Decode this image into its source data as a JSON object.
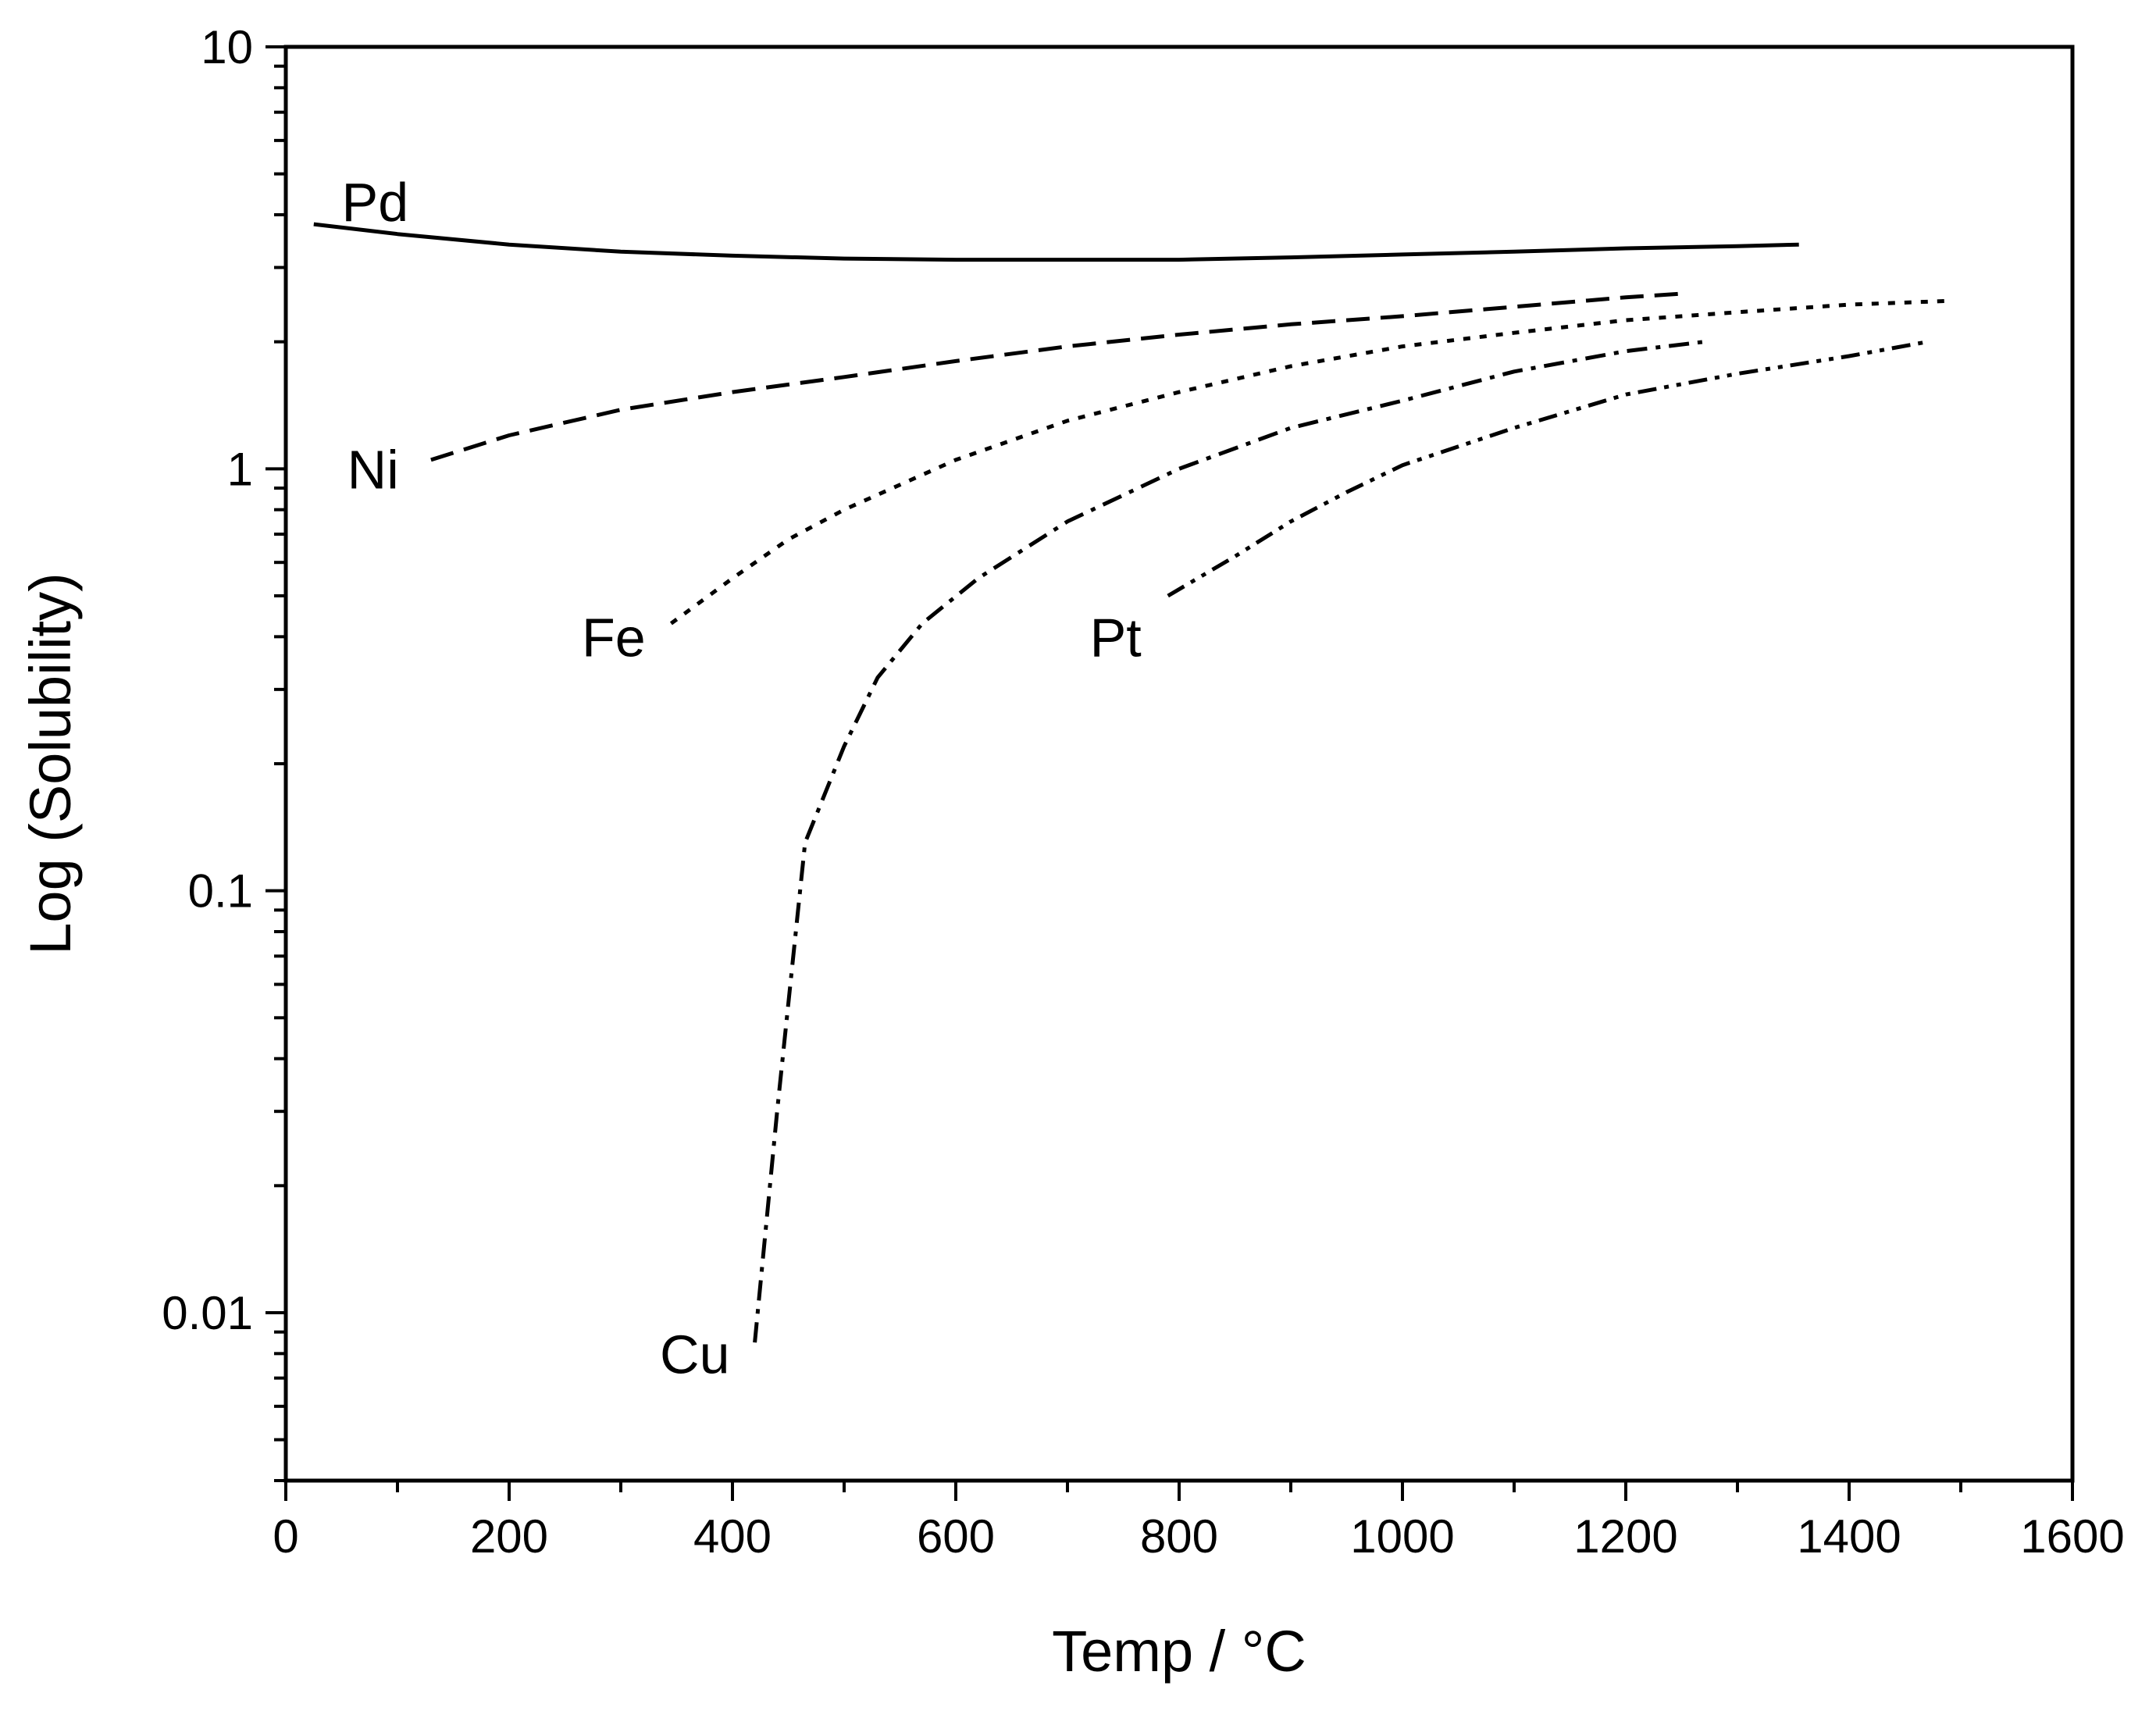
{
  "chart_data": {
    "type": "line",
    "title": "",
    "xlabel": "Temp / °C",
    "ylabel": "Log (Solubility)",
    "xlim": [
      0,
      1600
    ],
    "ylim": [
      0.004,
      10
    ],
    "yscale": "log",
    "x_ticks": [
      0,
      200,
      400,
      600,
      800,
      1000,
      1200,
      1400,
      1600
    ],
    "y_ticks": [
      0.01,
      0.1,
      1,
      10
    ],
    "x_tick_labels": [
      "0",
      "200",
      "400",
      "600",
      "800",
      "1000",
      "1200",
      "1400",
      "1600"
    ],
    "y_tick_labels": [
      "0.01",
      "0.1",
      "1",
      "10"
    ],
    "grid": false,
    "legend": "inline labels",
    "series": [
      {
        "name": "Pd",
        "label": "Pd",
        "style": "solid",
        "label_anchor": [
          50,
          4.3
        ],
        "x": [
          25,
          100,
          200,
          300,
          400,
          500,
          600,
          700,
          800,
          900,
          1000,
          1100,
          1200,
          1300,
          1355
        ],
        "y": [
          3.8,
          3.6,
          3.4,
          3.27,
          3.2,
          3.15,
          3.13,
          3.13,
          3.13,
          3.17,
          3.22,
          3.27,
          3.33,
          3.37,
          3.4
        ]
      },
      {
        "name": "Ni",
        "label": "Ni",
        "style": "dashed",
        "label_anchor": [
          55,
          1.0
        ],
        "x": [
          130,
          200,
          300,
          400,
          500,
          600,
          700,
          800,
          900,
          1000,
          1100,
          1200,
          1250
        ],
        "y": [
          1.05,
          1.2,
          1.38,
          1.52,
          1.65,
          1.8,
          1.95,
          2.08,
          2.2,
          2.3,
          2.42,
          2.55,
          2.6
        ]
      },
      {
        "name": "Fe",
        "label": "Fe",
        "style": "dotted",
        "label_anchor": [
          265,
          0.4
        ],
        "x": [
          345,
          400,
          450,
          500,
          600,
          700,
          800,
          900,
          1000,
          1100,
          1200,
          1300,
          1400,
          1490
        ],
        "y": [
          0.43,
          0.55,
          0.68,
          0.8,
          1.05,
          1.3,
          1.52,
          1.75,
          1.95,
          2.1,
          2.25,
          2.35,
          2.45,
          2.5
        ]
      },
      {
        "name": "Cu",
        "label": "Cu",
        "style": "dash-dot",
        "label_anchor": [
          335,
          0.008
        ],
        "x": [
          420,
          440,
          465,
          500,
          530,
          570,
          620,
          700,
          800,
          900,
          1000,
          1100,
          1200,
          1270
        ],
        "y": [
          0.0085,
          0.03,
          0.13,
          0.22,
          0.32,
          0.43,
          0.55,
          0.75,
          1.0,
          1.25,
          1.45,
          1.7,
          1.9,
          2.0
        ]
      },
      {
        "name": "Pt",
        "label": "Pt",
        "style": "dash-dot-dot",
        "label_anchor": [
          720,
          0.4
        ],
        "x": [
          790,
          850,
          900,
          950,
          1000,
          1100,
          1200,
          1300,
          1400,
          1470
        ],
        "y": [
          0.5,
          0.62,
          0.75,
          0.88,
          1.02,
          1.25,
          1.5,
          1.68,
          1.85,
          2.0
        ]
      }
    ]
  }
}
